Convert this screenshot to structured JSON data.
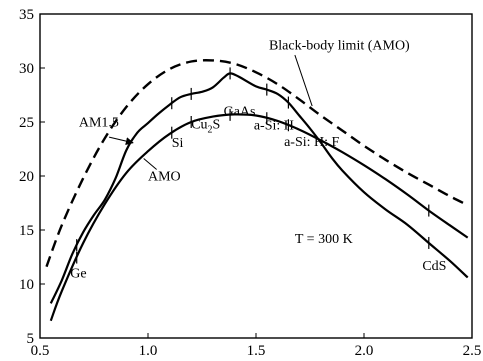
{
  "chart_data": {
    "type": "line",
    "title": "",
    "xlabel": "",
    "ylabel": "",
    "xlim": [
      0.5,
      2.5
    ],
    "ylim": [
      5,
      35
    ],
    "xticks": [
      0.5,
      1.0,
      1.5,
      2.0,
      2.5
    ],
    "xtick_labels": [
      "0.5",
      "1.0",
      "1.5",
      "2.0",
      "2.5"
    ],
    "yticks": [
      5,
      10,
      15,
      20,
      25,
      30,
      35
    ],
    "ytick_labels": [
      "5",
      "10",
      "15",
      "20",
      "25",
      "30",
      "35"
    ],
    "grid": false,
    "series": [
      {
        "name": "Black-body limit (AMO)",
        "style": "dashed",
        "x": [
          0.53,
          0.6,
          0.7,
          0.8,
          0.9,
          1.0,
          1.1,
          1.2,
          1.3,
          1.4,
          1.5,
          1.6,
          1.7,
          1.8,
          1.9,
          2.0,
          2.1,
          2.2,
          2.3,
          2.4,
          2.48
        ],
        "y": [
          11.6,
          15.4,
          19.8,
          23.5,
          26.4,
          28.5,
          29.9,
          30.6,
          30.7,
          30.4,
          29.6,
          28.5,
          27.1,
          25.6,
          24.2,
          22.8,
          21.5,
          20.3,
          19.2,
          18.1,
          17.3
        ]
      },
      {
        "name": "AM1.5",
        "style": "solid",
        "x": [
          0.55,
          0.6,
          0.65,
          0.7,
          0.75,
          0.8,
          0.85,
          0.9,
          0.95,
          1.0,
          1.05,
          1.1,
          1.15,
          1.2,
          1.25,
          1.3,
          1.35,
          1.38,
          1.42,
          1.5,
          1.55,
          1.6,
          1.65,
          1.7,
          1.75,
          1.8,
          1.85,
          1.9,
          2.0,
          2.1,
          2.2,
          2.3,
          2.4,
          2.48
        ],
        "y": [
          8.2,
          10.3,
          12.8,
          14.8,
          16.4,
          17.8,
          19.8,
          22.4,
          24.0,
          24.9,
          25.8,
          26.6,
          27.3,
          27.6,
          27.8,
          28.2,
          29.1,
          29.5,
          29.2,
          28.3,
          28.0,
          27.6,
          26.8,
          25.6,
          24.4,
          23.1,
          21.7,
          20.5,
          18.5,
          16.9,
          15.5,
          13.8,
          12.1,
          10.6
        ]
      },
      {
        "name": "AMO",
        "style": "solid",
        "x": [
          0.55,
          0.6,
          0.7,
          0.8,
          0.9,
          1.0,
          1.1,
          1.2,
          1.3,
          1.4,
          1.5,
          1.6,
          1.7,
          1.8,
          1.9,
          2.0,
          2.1,
          2.2,
          2.3,
          2.4,
          2.48
        ],
        "y": [
          6.6,
          9.3,
          13.8,
          17.4,
          20.3,
          22.3,
          23.9,
          25.0,
          25.5,
          25.7,
          25.6,
          25.1,
          24.3,
          23.3,
          22.2,
          21.0,
          19.7,
          18.3,
          16.8,
          15.4,
          14.3
        ]
      }
    ],
    "markers": [
      {
        "label": "Ge",
        "x": 0.67
      },
      {
        "label": "Si",
        "x": 1.11
      },
      {
        "label": "Cu2S",
        "x": 1.2
      },
      {
        "label": "GaAs",
        "x": 1.38
      },
      {
        "label": "a-Si: H",
        "x": 1.55
      },
      {
        "label": "a-Si: H: F",
        "x": 1.65
      },
      {
        "label": "CdS",
        "x": 2.3
      }
    ],
    "annotations": [
      {
        "text": "Black-body limit (AMO)",
        "x": 1.56,
        "y": 31.7
      },
      {
        "text": "AM1.5",
        "x": 0.68,
        "y": 24.6
      },
      {
        "text": "AMO",
        "x": 1.0,
        "y": 19.6
      },
      {
        "text": "T = 300 K",
        "x": 1.68,
        "y": 13.8
      },
      {
        "text": "Si",
        "x": 1.11,
        "y": 22.7
      },
      {
        "text": "Cu",
        "x": 1.2,
        "y": 24.4,
        "subscript": "2",
        "suffix": "S"
      },
      {
        "text": "GaAs",
        "x": 1.35,
        "y": 25.6
      },
      {
        "text": "a-Si: H",
        "x": 1.49,
        "y": 24.3
      },
      {
        "text": "a-Si: H: F",
        "x": 1.63,
        "y": 22.8
      },
      {
        "text": "Ge",
        "x": 0.64,
        "y": 10.6
      },
      {
        "text": "CdS",
        "x": 2.27,
        "y": 11.3
      }
    ]
  }
}
